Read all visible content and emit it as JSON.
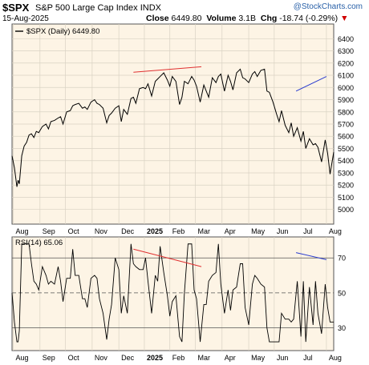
{
  "header": {
    "symbol": "$SPX",
    "name": "S&P 500 Large Cap Index",
    "exchange": "INDX",
    "date": "15-Aug-2025",
    "close_label": "Close",
    "close_value": "6449.80",
    "volume_label": "Volume",
    "volume_value": "3.1B",
    "chg_label": "Chg",
    "chg_value": "-18.74 (-0.29%)",
    "watermark": "@StockCharts.com"
  },
  "colors": {
    "price_panel_bg": "#fdf4e5",
    "price_line": "#000000",
    "rsi_shade": "#b59080",
    "down_marker": "#d00000",
    "trend_red": "#e03030",
    "trend_blue": "#2a3ccf",
    "grid": "#d9d2c3"
  },
  "chart_data": [
    {
      "type": "line",
      "legend": "$SPX (Daily) 6449.80",
      "ylim": [
        4880,
        6520
      ],
      "yticks": [
        5000,
        5100,
        5200,
        5300,
        5400,
        5500,
        5600,
        5700,
        5800,
        5900,
        6000,
        6100,
        6200,
        6300,
        6400
      ],
      "x_labels": [
        "Aug",
        "Sep",
        "Oct",
        "Nov",
        "Dec",
        "2025",
        "Feb",
        "Mar",
        "Apr",
        "May",
        "Jun",
        "Jul",
        "Aug"
      ],
      "x": [
        0,
        2,
        4,
        5,
        6,
        8,
        10,
        12,
        14,
        16,
        18,
        20,
        22,
        25,
        28,
        30,
        32,
        35,
        38,
        40,
        42,
        45,
        48,
        50,
        52,
        55,
        58,
        60,
        62,
        65,
        68,
        70,
        72,
        75,
        78,
        80,
        82,
        85,
        88,
        90,
        92,
        95,
        98,
        100,
        102,
        105,
        108,
        110,
        112,
        115,
        118,
        120,
        122,
        125,
        128,
        130,
        132,
        135,
        138,
        140,
        142,
        145,
        148,
        150,
        152,
        155,
        158,
        160,
        162,
        165,
        168,
        170,
        172,
        175,
        178,
        180,
        182,
        185,
        188,
        190,
        192,
        195,
        198,
        200,
        202,
        205,
        208,
        210,
        212,
        215,
        218,
        220,
        222,
        225,
        228,
        230,
        232,
        235,
        238,
        240,
        242,
        245,
        248,
        250,
        252,
        255,
        258,
        260,
        262,
        265
      ],
      "values": [
        5440,
        5340,
        5186,
        5240,
        5210,
        5440,
        5520,
        5550,
        5610,
        5620,
        5590,
        5640,
        5630,
        5680,
        5700,
        5660,
        5720,
        5730,
        5750,
        5760,
        5700,
        5800,
        5810,
        5850,
        5860,
        5870,
        5830,
        5840,
        5820,
        5880,
        5900,
        5870,
        5860,
        5830,
        5710,
        5770,
        5790,
        5830,
        5850,
        5720,
        5820,
        5780,
        5910,
        5920,
        5870,
        5990,
        6000,
        5990,
        6030,
        5930,
        6050,
        6070,
        6090,
        6120,
        6060,
        6010,
        6090,
        6050,
        5860,
        5920,
        6050,
        6030,
        6090,
        6060,
        6010,
        5880,
        6020,
        5970,
        5920,
        6080,
        6040,
        6090,
        6110,
        5970,
        6100,
        6050,
        5980,
        6120,
        6150,
        6080,
        6070,
        6040,
        6110,
        6130,
        6090,
        6140,
        6150,
        5970,
        5960,
        5880,
        5780,
        5720,
        5810,
        5690,
        5630,
        5710,
        5600,
        5670,
        5560,
        5640,
        5500,
        5580,
        5530,
        5540,
        5510,
        5390,
        5570,
        5460,
        5290,
        5470
      ]
    },
    {
      "type": "line",
      "legend": "RSI(14) 65.06",
      "ylim": [
        17,
        82
      ],
      "yticks": [
        30,
        50,
        70
      ],
      "x_labels": [
        "Aug",
        "Sep",
        "Oct",
        "Nov",
        "Dec",
        "2025",
        "Feb",
        "Mar",
        "Apr",
        "May",
        "Jun",
        "Jul",
        "Aug"
      ]
    }
  ]
}
